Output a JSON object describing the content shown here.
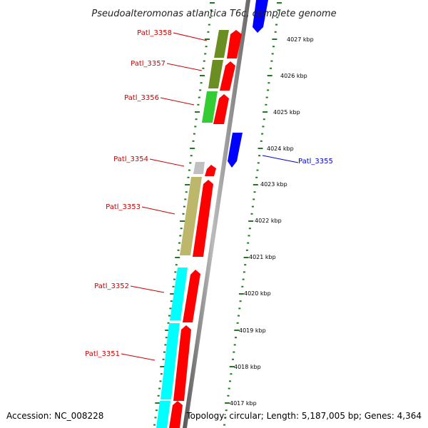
{
  "title": "Pseudoalteromonas atlantica T6c, complete genome",
  "footer": {
    "accession": "Accession: NC_008228",
    "topology": "Topology: circular; Length: 5,187,005 bp; Genes: 4,364"
  },
  "scale_labels": [
    "4027 kbp",
    "4026 kbp",
    "4025 kbp",
    "4024 kbp",
    "4023 kbp",
    "4022 kbp",
    "4021 kbp",
    "4020 kbp",
    "4019 kbp",
    "4018 kbp",
    "4017 kbp"
  ],
  "genes": [
    {
      "id": "Patl_3358",
      "color": "#cc0000"
    },
    {
      "id": "Patl_3357",
      "color": "#cc0000"
    },
    {
      "id": "Patl_3356",
      "color": "#cc0000"
    },
    {
      "id": "Patl_3355",
      "color": "#0000cc"
    },
    {
      "id": "Patl_3354",
      "color": "#cc0000"
    },
    {
      "id": "Patl_3353",
      "color": "#cc0000"
    },
    {
      "id": "Patl_3352",
      "color": "#cc0000"
    },
    {
      "id": "Patl_3351",
      "color": "#cc0000"
    }
  ],
  "colors": {
    "cds": "#ff0000",
    "reverse_cds": "#0000ff",
    "backbone": "#999999",
    "ticks": "#1f7a1f",
    "category_olive": "#6b8e23",
    "category_green": "#33cc33",
    "category_grey": "#c0c0c0",
    "category_khaki": "#bdb76b",
    "category_cyan": "#00ffff"
  }
}
